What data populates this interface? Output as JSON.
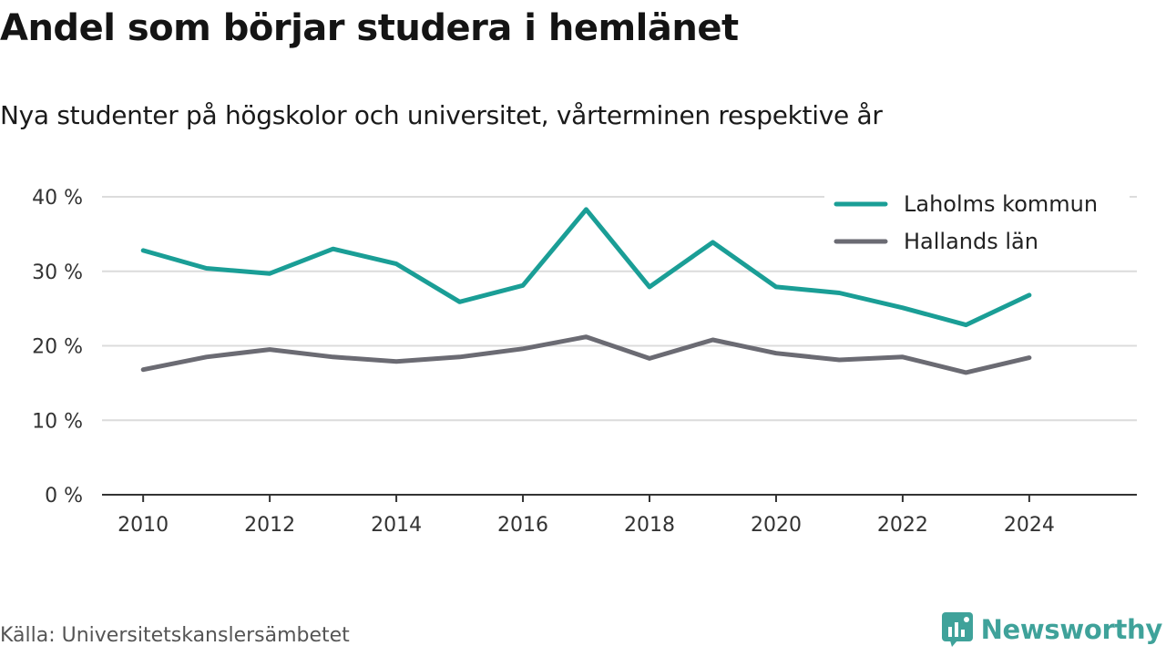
{
  "title": "Andel som börjar studera i hemlänet",
  "subtitle": "Nya studenter på högskolor och universitet, vårterminen respektive år",
  "source": "Källa: Universitetskanslersämbetet",
  "brand": {
    "name": "Newsworthy",
    "icon": "newsworthy-logo-icon",
    "color": "#3fa29a"
  },
  "chart_data": {
    "type": "line",
    "x": [
      2010,
      2011,
      2012,
      2013,
      2014,
      2015,
      2016,
      2017,
      2018,
      2019,
      2020,
      2021,
      2022,
      2023,
      2024
    ],
    "x_ticks": [
      2010,
      2012,
      2014,
      2016,
      2018,
      2020,
      2022,
      2024
    ],
    "y_ticks": [
      0,
      10,
      20,
      30,
      40
    ],
    "y_tick_labels": [
      "0 %",
      "10 %",
      "20 %",
      "30 %",
      "40 %"
    ],
    "ylim": [
      0,
      40
    ],
    "xlim": [
      2009.35,
      2025.7
    ],
    "grid": true,
    "legend_position": "top-right",
    "series": [
      {
        "name": "Laholms kommun",
        "color": "#1a9e96",
        "values": [
          32.8,
          30.4,
          29.7,
          33.0,
          31.0,
          25.9,
          28.1,
          38.3,
          27.9,
          33.9,
          27.9,
          27.1,
          25.1,
          22.8,
          26.8
        ]
      },
      {
        "name": "Hallands län",
        "color": "#6b6b73",
        "values": [
          16.8,
          18.5,
          19.5,
          18.5,
          17.9,
          18.5,
          19.6,
          21.2,
          18.3,
          20.8,
          19.0,
          18.1,
          18.5,
          16.4,
          18.4
        ]
      }
    ]
  }
}
